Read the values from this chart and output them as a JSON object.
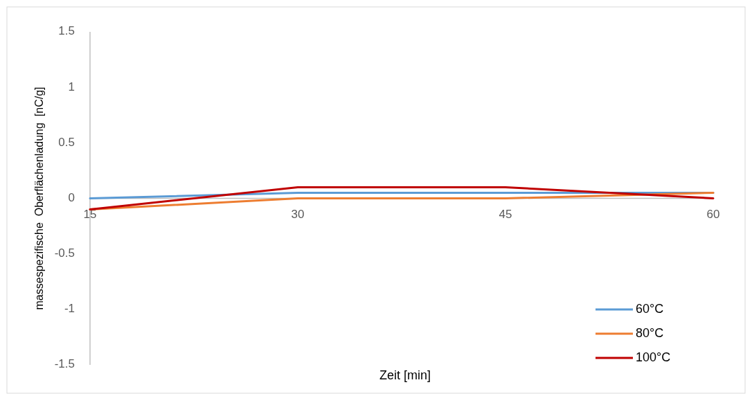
{
  "chart_data": {
    "type": "line",
    "xlabel": "Zeit [min]",
    "ylabel": "massespezifische  Oberflächenladung  [nC/g]",
    "categories": [
      "15",
      "30",
      "45",
      "60"
    ],
    "series": [
      {
        "name": "60°C",
        "color": "#5b9bd5",
        "values": [
          0,
          0.05,
          0.05,
          0.05
        ]
      },
      {
        "name": "80°C",
        "color": "#ed7d31",
        "values": [
          -0.1,
          0,
          0,
          0.05
        ]
      },
      {
        "name": "100°C",
        "color": "#c00000",
        "values": [
          -0.1,
          0.1,
          0.1,
          0
        ]
      }
    ],
    "ylim": [
      -1.5,
      1.5
    ],
    "yticks": [
      -1.5,
      -1,
      -0.5,
      0,
      0.5,
      1,
      1.5
    ],
    "grid": false,
    "legend": "bottom right",
    "marker": "none",
    "line_style": "solid"
  }
}
